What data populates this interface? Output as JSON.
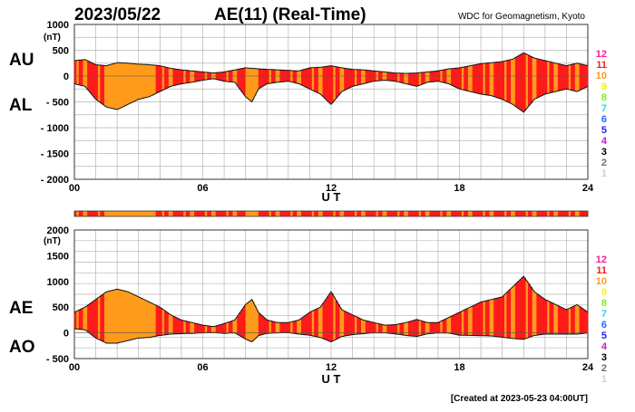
{
  "header": {
    "date": "2023/05/22",
    "title": "AE(11) (Real-Time)",
    "credit": "WDC for Geomagnetism, Kyoto"
  },
  "footer": {
    "created": "[Created at 2023-05-23 04:00UT]"
  },
  "scale_colors": [
    {
      "label": "12",
      "color": "#ff1aa0"
    },
    {
      "label": "11",
      "color": "#ff1a1a"
    },
    {
      "label": "10",
      "color": "#ff9a1a"
    },
    {
      "label": "9",
      "color": "#f4f400"
    },
    {
      "label": "8",
      "color": "#7cf01a"
    },
    {
      "label": "7",
      "color": "#1ae0e0"
    },
    {
      "label": "6",
      "color": "#1a6cff"
    },
    {
      "label": "5",
      "color": "#2a1aff"
    },
    {
      "label": "4",
      "color": "#c81ac8"
    },
    {
      "label": "3",
      "color": "#000000"
    },
    {
      "label": "2",
      "color": "#6e6e6e"
    },
    {
      "label": "1",
      "color": "#cfcfcf"
    }
  ],
  "chart_data": [
    {
      "type": "area",
      "panel": "AU/AL",
      "series": [
        {
          "name": "AU",
          "label": "AU"
        },
        {
          "name": "AL",
          "label": "AL"
        }
      ],
      "yunit": "(nT)",
      "ylim": [
        -2000,
        1000
      ],
      "yticks": [
        1000,
        500,
        0,
        -500,
        -1000,
        -1500,
        -2000
      ],
      "ytick_labels": [
        "1000",
        "500",
        "0",
        "- 500",
        "- 1000",
        "- 1500",
        "- 2000"
      ],
      "xlim": [
        0,
        24
      ],
      "xticks": [
        0,
        6,
        12,
        18,
        24
      ],
      "xtick_labels": [
        "00",
        "06",
        "12",
        "18",
        "24"
      ],
      "xlabel": "U T",
      "grid": true,
      "x": [
        0,
        0.5,
        1.0,
        1.5,
        2.0,
        2.5,
        3.0,
        3.5,
        4.0,
        4.5,
        5.0,
        5.5,
        6.0,
        6.5,
        7.0,
        7.5,
        8.0,
        8.3,
        8.6,
        9.0,
        9.5,
        10.0,
        10.5,
        11.0,
        11.5,
        12.0,
        12.5,
        13.0,
        13.5,
        14.0,
        14.5,
        15.0,
        15.5,
        16.0,
        16.5,
        17.0,
        17.5,
        18.0,
        18.5,
        19.0,
        19.5,
        20.0,
        20.5,
        21.0,
        21.5,
        22.0,
        22.5,
        23.0,
        23.5,
        24.0
      ],
      "au": [
        300,
        320,
        220,
        200,
        260,
        250,
        230,
        220,
        200,
        150,
        120,
        100,
        80,
        60,
        80,
        120,
        160,
        150,
        140,
        130,
        120,
        110,
        100,
        160,
        170,
        200,
        160,
        130,
        120,
        100,
        80,
        60,
        50,
        60,
        80,
        100,
        140,
        160,
        200,
        240,
        260,
        280,
        330,
        450,
        350,
        300,
        250,
        200,
        250,
        200
      ],
      "al": [
        -150,
        -200,
        -450,
        -600,
        -650,
        -550,
        -450,
        -400,
        -300,
        -200,
        -150,
        -120,
        -80,
        -50,
        -100,
        -120,
        -400,
        -500,
        -250,
        -150,
        -120,
        -100,
        -150,
        -250,
        -350,
        -550,
        -300,
        -200,
        -150,
        -100,
        -80,
        -100,
        -150,
        -200,
        -120,
        -100,
        -150,
        -250,
        -300,
        -350,
        -380,
        -450,
        -550,
        -700,
        -450,
        -350,
        -300,
        -250,
        -300,
        -200
      ]
    },
    {
      "type": "area",
      "panel": "AE/AO",
      "series": [
        {
          "name": "AE",
          "label": "AE"
        },
        {
          "name": "AO",
          "label": "AO"
        }
      ],
      "yunit": "(nT)",
      "ylim": [
        -500,
        2000
      ],
      "yticks": [
        2000,
        1500,
        1000,
        500,
        0,
        -500
      ],
      "ytick_labels": [
        "2000",
        "1500",
        "1000",
        "500",
        "0",
        "- 500"
      ],
      "xlim": [
        0,
        24
      ],
      "xticks": [
        0,
        6,
        12,
        18,
        24
      ],
      "xtick_labels": [
        "00",
        "06",
        "12",
        "18",
        "24"
      ],
      "xlabel": "U T",
      "grid": true,
      "x": [
        0,
        0.5,
        1.0,
        1.5,
        2.0,
        2.5,
        3.0,
        3.5,
        4.0,
        4.5,
        5.0,
        5.5,
        6.0,
        6.5,
        7.0,
        7.5,
        8.0,
        8.3,
        8.6,
        9.0,
        9.5,
        10.0,
        10.5,
        11.0,
        11.5,
        12.0,
        12.5,
        13.0,
        13.5,
        14.0,
        14.5,
        15.0,
        15.5,
        16.0,
        16.5,
        17.0,
        17.5,
        18.0,
        18.5,
        19.0,
        19.5,
        20.0,
        20.5,
        21.0,
        21.5,
        22.0,
        22.5,
        23.0,
        23.5,
        24.0
      ],
      "ae": [
        400,
        500,
        650,
        800,
        850,
        800,
        700,
        600,
        500,
        350,
        250,
        200,
        150,
        120,
        180,
        250,
        550,
        650,
        400,
        250,
        200,
        200,
        250,
        400,
        500,
        800,
        450,
        350,
        250,
        200,
        150,
        160,
        200,
        260,
        200,
        200,
        300,
        400,
        500,
        600,
        650,
        700,
        900,
        1100,
        800,
        650,
        550,
        450,
        550,
        400
      ],
      "ao": [
        80,
        60,
        -100,
        -200,
        -200,
        -150,
        -100,
        -90,
        -50,
        -25,
        -15,
        -10,
        0,
        5,
        -10,
        0,
        -120,
        -175,
        -55,
        -10,
        0,
        5,
        -25,
        -45,
        -90,
        -175,
        -70,
        -35,
        -15,
        0,
        0,
        -20,
        -50,
        -70,
        -20,
        0,
        -5,
        -45,
        -50,
        -55,
        -60,
        -85,
        -110,
        -125,
        -50,
        -25,
        -25,
        -25,
        -25,
        0
      ]
    }
  ],
  "color_band": {
    "label": "station count bar",
    "hours": [
      [
        0,
        1.5,
        "#ff1a1a"
      ],
      [
        1.5,
        3.8,
        "#ff9a1a"
      ],
      [
        3.8,
        8.0,
        "#ff1a1a"
      ],
      [
        8.0,
        8.4,
        "#ff9a1a"
      ],
      [
        8.4,
        24,
        "#ff1a1a"
      ]
    ]
  }
}
